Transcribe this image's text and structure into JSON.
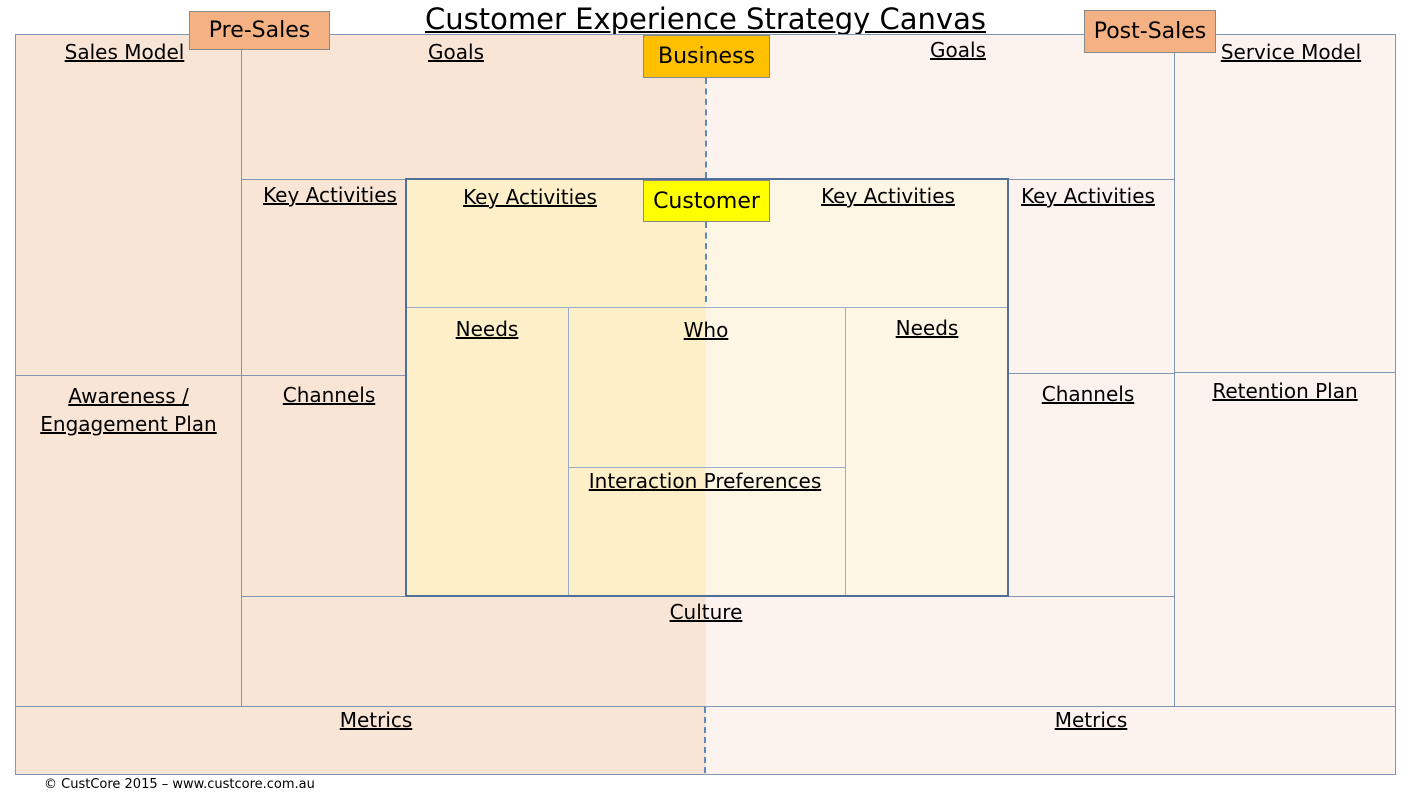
{
  "title": "Customer Experience Strategy Canvas",
  "tags": {
    "pre_sales": "Pre-Sales",
    "post_sales": "Post-Sales",
    "business": "Business",
    "customer": "Customer"
  },
  "left": {
    "sales_model": "Sales Model",
    "goals": "Goals",
    "key_activities_outer": "Key Activities",
    "awareness_line1": "Awareness /",
    "awareness_line2": "Engagement Plan",
    "channels": "Channels",
    "metrics": "Metrics"
  },
  "right": {
    "goals": "Goals",
    "service_model": "Service Model",
    "key_activities_outer": "Key Activities",
    "channels": "Channels",
    "retention_plan": "Retention Plan",
    "metrics": "Metrics"
  },
  "customer_box": {
    "key_activities_left": "Key Activities",
    "key_activities_right": "Key Activities",
    "needs_left": "Needs",
    "who": "Who",
    "needs_right": "Needs",
    "interaction_preferences": "Interaction Preferences"
  },
  "culture": "Culture",
  "footer": "© CustCore 2015 – www.custcore.com.au",
  "colors": {
    "pre_sales_tag": "#f4b183",
    "business_tag": "#ffc000",
    "customer_tag": "#ffff00",
    "left_fill": "#f9e5d6",
    "right_fill": "#fdf3ee",
    "border": "#7f97b3"
  }
}
